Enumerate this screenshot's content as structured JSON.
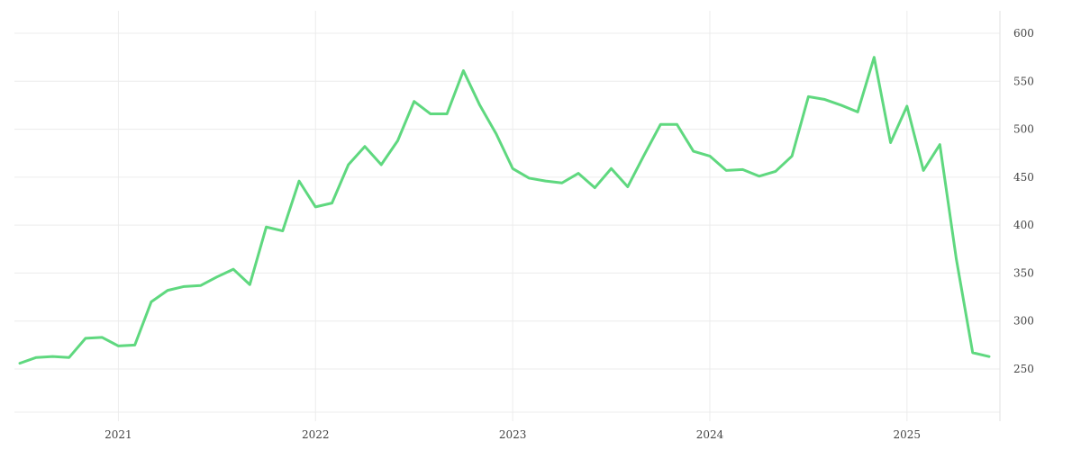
{
  "chart_data": {
    "type": "line",
    "title": "",
    "xlabel": "",
    "ylabel": "",
    "grid": true,
    "legend": "none",
    "y_axis_side": "right",
    "line_color": "#5fd87f",
    "ylim": [
      200,
      620
    ],
    "yticks": [
      250,
      300,
      350,
      400,
      450,
      500,
      550,
      600
    ],
    "xlim": [
      "2020-07",
      "2025-07"
    ],
    "xticks": [
      {
        "label": "2021",
        "value": "2021-01"
      },
      {
        "label": "2022",
        "value": "2022-01"
      },
      {
        "label": "2023",
        "value": "2023-01"
      },
      {
        "label": "2024",
        "value": "2024-01"
      },
      {
        "label": "2025",
        "value": "2025-01"
      }
    ],
    "x": [
      "2020-07",
      "2020-08",
      "2020-09",
      "2020-10",
      "2020-11",
      "2020-12",
      "2021-01",
      "2021-02",
      "2021-03",
      "2021-04",
      "2021-05",
      "2021-06",
      "2021-07",
      "2021-08",
      "2021-09",
      "2021-10",
      "2021-11",
      "2021-12",
      "2022-01",
      "2022-02",
      "2022-03",
      "2022-04",
      "2022-05",
      "2022-06",
      "2022-07",
      "2022-08",
      "2022-09",
      "2022-10",
      "2022-11",
      "2022-12",
      "2023-01",
      "2023-02",
      "2023-03",
      "2023-04",
      "2023-05",
      "2023-06",
      "2023-07",
      "2023-08",
      "2023-09",
      "2023-10",
      "2023-11",
      "2023-12",
      "2024-01",
      "2024-02",
      "2024-03",
      "2024-04",
      "2024-05",
      "2024-06",
      "2024-07",
      "2024-08",
      "2024-09",
      "2024-10",
      "2024-11",
      "2024-12",
      "2025-01",
      "2025-02",
      "2025-03",
      "2025-04",
      "2025-05",
      "2025-06"
    ],
    "series": [
      {
        "values": [
          256,
          262,
          263,
          262,
          282,
          283,
          274,
          275,
          320,
          332,
          336,
          337,
          346,
          354,
          338,
          398,
          394,
          446,
          419,
          423,
          463,
          482,
          463,
          488,
          529,
          516,
          516,
          561,
          525,
          495,
          459,
          449,
          446,
          444,
          454,
          439,
          459,
          440,
          473,
          505,
          505,
          477,
          472,
          457,
          458,
          451,
          456,
          472,
          534,
          531,
          525,
          518,
          575,
          486,
          524,
          457,
          484,
          365,
          267,
          263
        ]
      }
    ]
  }
}
